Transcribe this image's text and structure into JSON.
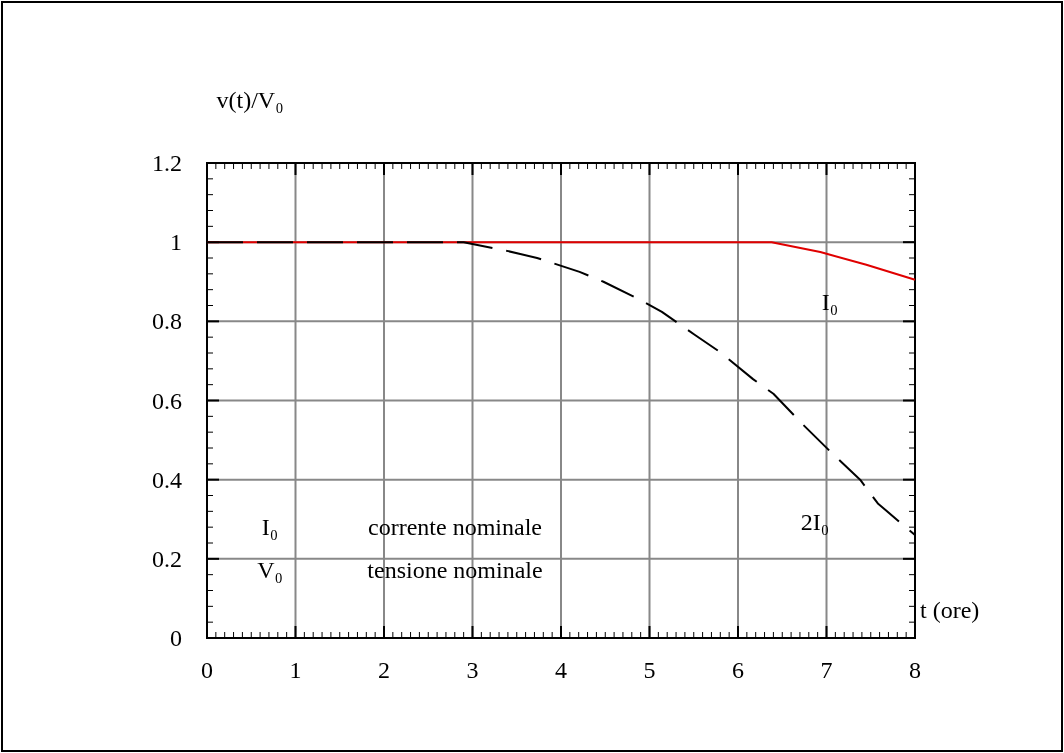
{
  "chart_data": {
    "type": "line",
    "xlabel": "t (ore)",
    "ylabel": "v(t)/V₀",
    "xlim": [
      0,
      8
    ],
    "xticks": [
      0,
      1,
      2,
      3,
      4,
      5,
      6,
      7,
      8
    ],
    "ylim": [
      0,
      1.2
    ],
    "yticks": [
      0,
      0.2,
      0.4,
      0.6,
      0.8,
      1,
      1.2
    ],
    "grid": true,
    "legend": false,
    "series": [
      {
        "name": "I₀",
        "color": "#e00000",
        "line_style": "solid",
        "x": [
          0,
          6.38,
          6.93,
          7.45,
          8
        ],
        "values": [
          1,
          1,
          0.975,
          0.943,
          0.905
        ]
      },
      {
        "name": "2I₀",
        "color": "#000000",
        "line_style": "dashed",
        "x": [
          0,
          2.9,
          3.39,
          3.73,
          4.21,
          4.48,
          4.87,
          5.14,
          5.51,
          5.8,
          6.17,
          6.4,
          6.73,
          7.07,
          7.38,
          7.58,
          8
        ],
        "values": [
          1,
          1,
          0.978,
          0.96,
          0.925,
          0.9,
          0.857,
          0.824,
          0.766,
          0.722,
          0.654,
          0.617,
          0.54,
          0.465,
          0.4,
          0.34,
          0.26
        ]
      }
    ],
    "annotations": [
      "I₀",
      "corrente nominale",
      "V₀",
      "tensione nominale"
    ]
  }
}
